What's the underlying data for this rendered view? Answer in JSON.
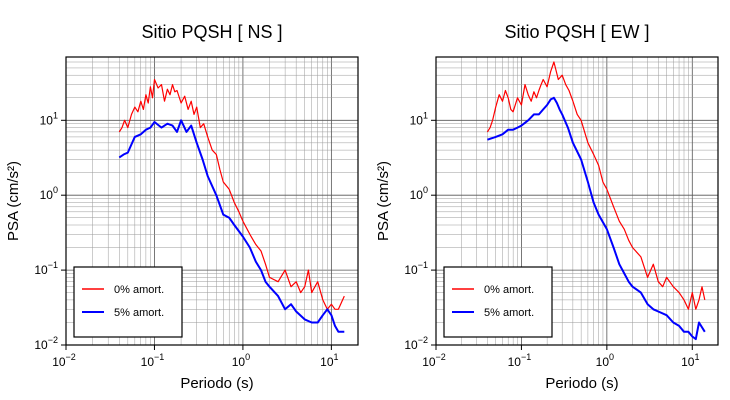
{
  "chart_data": [
    {
      "type": "line",
      "title": "Sitio PQSH [ NS ]",
      "xlabel": "Periodo (s)",
      "ylabel": "PSA (cm/s²)",
      "xscale": "log",
      "yscale": "log",
      "xlim": [
        0.01,
        20
      ],
      "ylim": [
        0.01,
        70
      ],
      "xticks": [
        {
          "base": "10",
          "exp": "−2"
        },
        {
          "base": "10",
          "exp": "−1"
        },
        {
          "base": "10",
          "exp": "0"
        },
        {
          "base": "10",
          "exp": "1"
        }
      ],
      "yticks": [
        {
          "base": "10",
          "exp": "−2"
        },
        {
          "base": "10",
          "exp": "−1"
        },
        {
          "base": "10",
          "exp": "0"
        },
        {
          "base": "10",
          "exp": "1"
        }
      ],
      "grid": true,
      "legend_position": "bottom-left",
      "series": [
        {
          "name": "0% amort.",
          "color": "#ff0000",
          "x": [
            0.04,
            0.043,
            0.046,
            0.05,
            0.055,
            0.06,
            0.065,
            0.07,
            0.075,
            0.08,
            0.085,
            0.09,
            0.095,
            0.1,
            0.11,
            0.12,
            0.13,
            0.14,
            0.15,
            0.16,
            0.17,
            0.18,
            0.2,
            0.22,
            0.24,
            0.26,
            0.28,
            0.3,
            0.33,
            0.36,
            0.4,
            0.45,
            0.5,
            0.55,
            0.6,
            0.7,
            0.8,
            0.9,
            1.0,
            1.2,
            1.4,
            1.6,
            1.8,
            2.0,
            2.5,
            3.0,
            3.5,
            4.0,
            4.5,
            5,
            5.5,
            6,
            7,
            8,
            9,
            10,
            11,
            12,
            14
          ],
          "y": [
            7,
            8,
            10,
            8,
            12,
            15,
            13,
            18,
            14,
            22,
            17,
            28,
            20,
            35,
            27,
            30,
            18,
            26,
            22,
            30,
            24,
            25,
            17,
            21,
            14,
            18,
            12,
            15,
            8,
            9,
            6,
            4,
            3.5,
            2.2,
            1.5,
            1.2,
            0.8,
            0.6,
            0.45,
            0.3,
            0.22,
            0.18,
            0.12,
            0.08,
            0.07,
            0.1,
            0.06,
            0.07,
            0.05,
            0.06,
            0.1,
            0.05,
            0.07,
            0.04,
            0.03,
            0.035,
            0.03,
            0.03,
            0.045
          ]
        },
        {
          "name": "5% amort.",
          "color": "#0000ff",
          "x": [
            0.04,
            0.045,
            0.05,
            0.06,
            0.07,
            0.08,
            0.09,
            0.1,
            0.12,
            0.14,
            0.16,
            0.18,
            0.2,
            0.23,
            0.26,
            0.3,
            0.35,
            0.4,
            0.5,
            0.6,
            0.7,
            0.8,
            1.0,
            1.2,
            1.4,
            1.6,
            1.8,
            2.0,
            2.5,
            3.0,
            3.5,
            4.0,
            5.0,
            6.0,
            7.0,
            8.0,
            9.0,
            10,
            11,
            12,
            14
          ],
          "y": [
            3.2,
            3.5,
            3.7,
            6,
            6.5,
            7.5,
            8,
            9.5,
            8,
            9,
            8.5,
            7,
            10,
            7,
            8.5,
            5,
            3,
            1.8,
            1.0,
            0.55,
            0.5,
            0.4,
            0.28,
            0.2,
            0.13,
            0.1,
            0.07,
            0.06,
            0.045,
            0.03,
            0.035,
            0.028,
            0.022,
            0.02,
            0.02,
            0.025,
            0.03,
            0.025,
            0.018,
            0.015,
            0.015
          ]
        }
      ]
    },
    {
      "type": "line",
      "title": "Sitio PQSH [ EW ]",
      "xlabel": "Periodo (s)",
      "ylabel": "PSA (cm/s²)",
      "xscale": "log",
      "yscale": "log",
      "xlim": [
        0.01,
        20
      ],
      "ylim": [
        0.01,
        70
      ],
      "xticks": [
        {
          "base": "10",
          "exp": "−2"
        },
        {
          "base": "10",
          "exp": "−1"
        },
        {
          "base": "10",
          "exp": "0"
        },
        {
          "base": "10",
          "exp": "1"
        }
      ],
      "yticks": [
        {
          "base": "10",
          "exp": "−2"
        },
        {
          "base": "10",
          "exp": "−1"
        },
        {
          "base": "10",
          "exp": "0"
        },
        {
          "base": "10",
          "exp": "1"
        }
      ],
      "grid": true,
      "legend_position": "bottom-left",
      "series": [
        {
          "name": "0% amort.",
          "color": "#ff0000",
          "x": [
            0.04,
            0.043,
            0.046,
            0.05,
            0.055,
            0.06,
            0.065,
            0.07,
            0.075,
            0.08,
            0.09,
            0.1,
            0.11,
            0.12,
            0.13,
            0.14,
            0.15,
            0.16,
            0.17,
            0.18,
            0.2,
            0.22,
            0.24,
            0.25,
            0.27,
            0.3,
            0.33,
            0.36,
            0.4,
            0.45,
            0.5,
            0.6,
            0.7,
            0.8,
            0.9,
            1.0,
            1.2,
            1.4,
            1.6,
            1.8,
            2.0,
            2.5,
            3.0,
            3.5,
            4.0,
            4.5,
            5,
            6,
            7,
            8,
            9,
            10,
            11,
            12,
            13,
            14
          ],
          "y": [
            7,
            8,
            10,
            15,
            22,
            18,
            25,
            20,
            14,
            13,
            20,
            16,
            30,
            22,
            18,
            24,
            20,
            25,
            30,
            35,
            28,
            45,
            60,
            50,
            35,
            40,
            30,
            25,
            18,
            12,
            10,
            5,
            3.5,
            2.5,
            1.5,
            1.2,
            0.7,
            0.45,
            0.35,
            0.25,
            0.2,
            0.15,
            0.08,
            0.12,
            0.07,
            0.06,
            0.08,
            0.06,
            0.05,
            0.04,
            0.03,
            0.05,
            0.03,
            0.04,
            0.06,
            0.04
          ]
        },
        {
          "name": "5% amort.",
          "color": "#0000ff",
          "x": [
            0.04,
            0.05,
            0.06,
            0.07,
            0.08,
            0.09,
            0.1,
            0.12,
            0.14,
            0.16,
            0.18,
            0.2,
            0.22,
            0.24,
            0.26,
            0.28,
            0.3,
            0.35,
            0.4,
            0.5,
            0.6,
            0.7,
            0.8,
            1.0,
            1.2,
            1.4,
            1.6,
            1.8,
            2.0,
            2.5,
            3.0,
            3.5,
            4.0,
            5.0,
            6.0,
            7.0,
            8.0,
            9.0,
            10,
            11,
            12,
            14
          ],
          "y": [
            5.5,
            6,
            6.5,
            7.5,
            7.5,
            8,
            8.5,
            10,
            12,
            12,
            14,
            16,
            19,
            20,
            17,
            14,
            12,
            8,
            5,
            3,
            1.5,
            0.8,
            0.55,
            0.35,
            0.2,
            0.12,
            0.09,
            0.07,
            0.06,
            0.05,
            0.035,
            0.03,
            0.028,
            0.025,
            0.02,
            0.018,
            0.015,
            0.015,
            0.013,
            0.012,
            0.02,
            0.015
          ]
        }
      ]
    }
  ]
}
